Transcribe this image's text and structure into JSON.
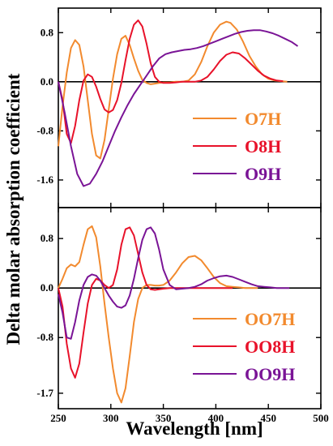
{
  "figure": {
    "ylabel": "Delta molar absorption coefficient",
    "xlabel": "Wavelength [nm]"
  },
  "chart_data": [
    {
      "type": "line",
      "panel": "top",
      "xlim": [
        250,
        500
      ],
      "ylim": [
        -2.05,
        1.2
      ],
      "yticks": [
        0.8,
        0.0,
        -0.8,
        -1.6
      ],
      "ytick_labels": [
        "0.8",
        "0.0",
        "-0.8",
        "-1.6"
      ],
      "xticks": [
        250,
        300,
        350,
        400,
        450,
        500
      ],
      "grid": false,
      "legend_position": "bottom-right",
      "series": [
        {
          "name": "O7H",
          "color": "#f28a2e",
          "x": [
            250,
            254,
            258,
            262,
            266,
            270,
            274,
            278,
            282,
            286,
            290,
            294,
            298,
            302,
            306,
            310,
            314,
            318,
            322,
            326,
            330,
            334,
            338,
            342,
            346,
            350,
            356,
            362,
            368,
            374,
            380,
            386,
            392,
            398,
            404,
            410,
            414,
            420,
            426,
            432,
            438,
            444,
            450,
            456,
            462,
            468
          ],
          "y": [
            -1.05,
            -0.4,
            0.15,
            0.55,
            0.68,
            0.6,
            0.25,
            -0.3,
            -0.85,
            -1.2,
            -1.25,
            -0.95,
            -0.45,
            0.05,
            0.45,
            0.7,
            0.75,
            0.6,
            0.38,
            0.18,
            0.03,
            -0.02,
            -0.04,
            -0.03,
            -0.02,
            -0.01,
            -0.01,
            0.0,
            0.0,
            0.02,
            0.12,
            0.32,
            0.58,
            0.8,
            0.93,
            0.98,
            0.96,
            0.85,
            0.65,
            0.42,
            0.25,
            0.12,
            0.05,
            0.02,
            0.01,
            0.0
          ]
        },
        {
          "name": "O8H",
          "color": "#e8122a",
          "x": [
            250,
            254,
            258,
            262,
            266,
            270,
            274,
            278,
            282,
            286,
            290,
            294,
            298,
            302,
            306,
            310,
            314,
            318,
            322,
            326,
            330,
            334,
            338,
            342,
            346,
            350,
            356,
            362,
            368,
            374,
            380,
            386,
            392,
            398,
            404,
            410,
            416,
            422,
            428,
            434,
            440,
            446,
            452,
            458,
            464
          ],
          "y": [
            0.0,
            -0.3,
            -0.85,
            -1.0,
            -0.72,
            -0.3,
            0.02,
            0.12,
            0.08,
            -0.08,
            -0.28,
            -0.45,
            -0.5,
            -0.46,
            -0.3,
            -0.02,
            0.35,
            0.7,
            0.93,
            1.0,
            0.9,
            0.62,
            0.3,
            0.08,
            0.0,
            -0.02,
            -0.02,
            -0.01,
            0.0,
            0.0,
            0.0,
            0.02,
            0.08,
            0.2,
            0.34,
            0.44,
            0.48,
            0.46,
            0.38,
            0.28,
            0.18,
            0.1,
            0.05,
            0.02,
            0.01
          ]
        },
        {
          "name": "O9H",
          "color": "#7a1496",
          "x": [
            250,
            256,
            262,
            268,
            274,
            280,
            286,
            292,
            298,
            304,
            310,
            316,
            322,
            328,
            334,
            340,
            346,
            352,
            358,
            364,
            370,
            376,
            382,
            388,
            394,
            400,
            406,
            412,
            418,
            424,
            430,
            436,
            442,
            448,
            454,
            460,
            466,
            472,
            478
          ],
          "y": [
            0.0,
            -0.5,
            -1.05,
            -1.5,
            -1.7,
            -1.66,
            -1.5,
            -1.3,
            -1.05,
            -0.8,
            -0.58,
            -0.38,
            -0.2,
            -0.05,
            0.1,
            0.25,
            0.38,
            0.45,
            0.48,
            0.5,
            0.52,
            0.53,
            0.55,
            0.58,
            0.62,
            0.66,
            0.7,
            0.74,
            0.78,
            0.81,
            0.83,
            0.84,
            0.84,
            0.82,
            0.79,
            0.75,
            0.7,
            0.65,
            0.58
          ]
        }
      ]
    },
    {
      "type": "line",
      "panel": "bottom",
      "xlim": [
        250,
        500
      ],
      "ylim": [
        -1.95,
        1.3
      ],
      "yticks": [
        0.8,
        0.0,
        -0.8,
        -1.7
      ],
      "ytick_labels": [
        "0.8",
        "0.0",
        "-0.8",
        "-1.7"
      ],
      "xticks": [
        250,
        300,
        350,
        400,
        450,
        500
      ],
      "xtick_labels": [
        "250",
        "300",
        "350",
        "400",
        "450",
        "500"
      ],
      "grid": false,
      "legend_position": "bottom-right",
      "series": [
        {
          "name": "OO7H",
          "color": "#f28a2e",
          "x": [
            250,
            254,
            258,
            262,
            266,
            270,
            274,
            278,
            282,
            286,
            290,
            294,
            298,
            302,
            306,
            310,
            314,
            318,
            322,
            326,
            330,
            334,
            338,
            342,
            346,
            350,
            356,
            362,
            368,
            374,
            380,
            386,
            392,
            398,
            404,
            410,
            416,
            422,
            428,
            434,
            440
          ],
          "y": [
            0.0,
            0.15,
            0.32,
            0.38,
            0.35,
            0.42,
            0.7,
            0.95,
            1.0,
            0.82,
            0.35,
            -0.25,
            -0.8,
            -1.3,
            -1.7,
            -1.85,
            -1.62,
            -1.1,
            -0.55,
            -0.18,
            0.0,
            0.05,
            0.05,
            0.04,
            0.04,
            0.05,
            0.12,
            0.25,
            0.4,
            0.5,
            0.52,
            0.45,
            0.32,
            0.18,
            0.08,
            0.03,
            0.02,
            0.01,
            0.0,
            0.0,
            0.0
          ]
        },
        {
          "name": "OO8H",
          "color": "#e8122a",
          "x": [
            250,
            254,
            258,
            262,
            266,
            270,
            274,
            278,
            282,
            286,
            290,
            294,
            298,
            302,
            306,
            310,
            314,
            318,
            322,
            326,
            330,
            334,
            338,
            342,
            346,
            350,
            356,
            362,
            368,
            374,
            380,
            386,
            392,
            398,
            404,
            410,
            416
          ],
          "y": [
            0.0,
            -0.3,
            -0.9,
            -1.3,
            -1.45,
            -1.22,
            -0.72,
            -0.25,
            0.05,
            0.15,
            0.12,
            0.05,
            0.0,
            0.05,
            0.3,
            0.7,
            0.95,
            0.98,
            0.85,
            0.55,
            0.25,
            0.05,
            -0.02,
            -0.03,
            -0.02,
            -0.01,
            0.0,
            0.0,
            0.0,
            0.0,
            0.0,
            0.0,
            0.0,
            0.0,
            0.0,
            0.0,
            0.0
          ]
        },
        {
          "name": "OO9H",
          "color": "#7a1496",
          "x": [
            250,
            254,
            258,
            262,
            266,
            270,
            274,
            278,
            282,
            286,
            290,
            294,
            298,
            302,
            306,
            310,
            314,
            318,
            322,
            326,
            330,
            334,
            338,
            342,
            346,
            350,
            356,
            362,
            368,
            374,
            380,
            386,
            392,
            398,
            404,
            410,
            416,
            422,
            428,
            434,
            440,
            446,
            452,
            458,
            464,
            470
          ],
          "y": [
            -0.1,
            -0.4,
            -0.8,
            -0.82,
            -0.55,
            -0.2,
            0.05,
            0.18,
            0.22,
            0.2,
            0.12,
            0.0,
            -0.12,
            -0.22,
            -0.3,
            -0.32,
            -0.28,
            -0.12,
            0.15,
            0.48,
            0.78,
            0.95,
            0.98,
            0.88,
            0.62,
            0.3,
            0.05,
            -0.02,
            -0.01,
            0.0,
            0.02,
            0.06,
            0.12,
            0.16,
            0.19,
            0.2,
            0.18,
            0.14,
            0.1,
            0.06,
            0.03,
            0.02,
            0.01,
            0.0,
            0.0,
            0.0
          ]
        }
      ]
    }
  ]
}
